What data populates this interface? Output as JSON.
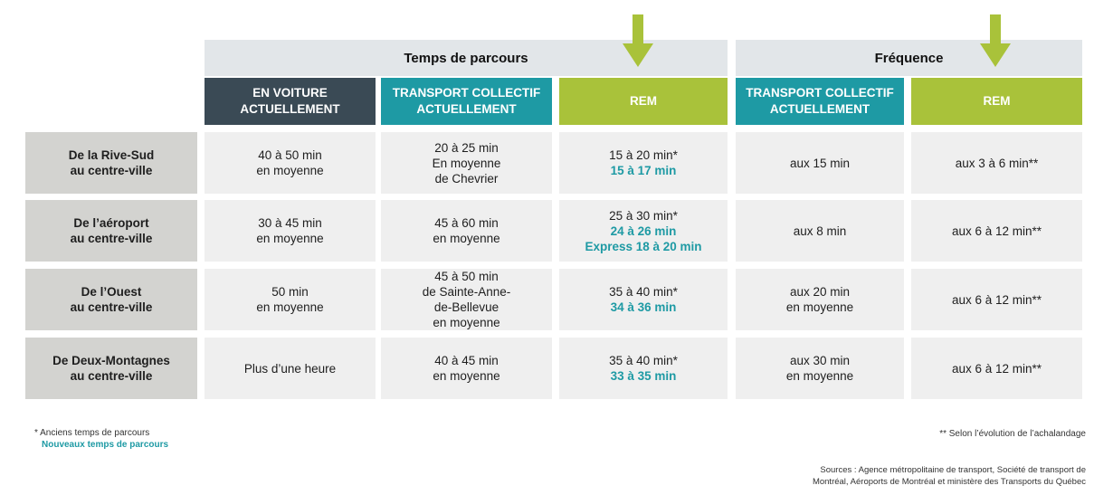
{
  "colors": {
    "dark": "#3a4a55",
    "teal": "#1e9aa4",
    "green": "#a9c23a",
    "row_header_bg": "#d3d3d0",
    "cell_bg": "#efefef",
    "group_header_bg": "#e2e6e9"
  },
  "groups": {
    "travel_time": "Temps de parcours",
    "frequency": "Fréquence"
  },
  "columns": [
    "EN VOITURE\nACTUELLEMENT",
    "TRANSPORT COLLECTIF\nACTUELLEMENT",
    "REM",
    "TRANSPORT COLLECTIF\nACTUELLEMENT",
    "REM"
  ],
  "rows": [
    {
      "label": "De la Rive-Sud\nau centre-ville",
      "car": "40 à 50 min\nen moyenne",
      "transit": "20 à 25 min\nEn moyenne\nde Chevrier",
      "rem_old": "15 à 20 min*",
      "rem_new": "15 à 17 min",
      "transit_freq": "aux 15 min",
      "rem_freq": "aux 3 à 6 min**"
    },
    {
      "label": "De l’aéroport\nau centre-ville",
      "car": "30 à 45 min\nen moyenne",
      "transit": "45 à 60 min\nen moyenne",
      "rem_old": "25 à 30 min*",
      "rem_new": "24 à 26 min\nExpress 18 à 20 min",
      "transit_freq": "aux 8 min",
      "rem_freq": "aux 6 à 12 min**"
    },
    {
      "label": "De l’Ouest\nau centre-ville",
      "car": "50 min\nen moyenne",
      "transit": "45 à 50 min\nde Sainte-Anne-\nde-Bellevue\nen moyenne",
      "rem_old": "35 à 40 min*",
      "rem_new": "34 à 36 min",
      "transit_freq": "aux 20 min\nen moyenne",
      "rem_freq": "aux 6 à 12 min**"
    },
    {
      "label": "De Deux-Montagnes\nau centre-ville",
      "car": "Plus d’une heure",
      "transit": "40 à 45 min\nen moyenne",
      "rem_old": "35 à 40 min*",
      "rem_new": "33 à 35 min",
      "transit_freq": "aux 30 min\nen moyenne",
      "rem_freq": "aux 6 à 12 min**"
    }
  ],
  "footnotes": {
    "old_times": "* Anciens temps de parcours",
    "new_times": "Nouveaux temps de parcours",
    "ridership": "** Selon l’évolution de l’achalandage",
    "sources": "Sources : Agence métropolitaine de transport, Société de transport de\nMontréal, Aéroports de Montréal et ministère des Transports du Québec"
  },
  "icons": {
    "arrow": "down-arrow-icon"
  }
}
